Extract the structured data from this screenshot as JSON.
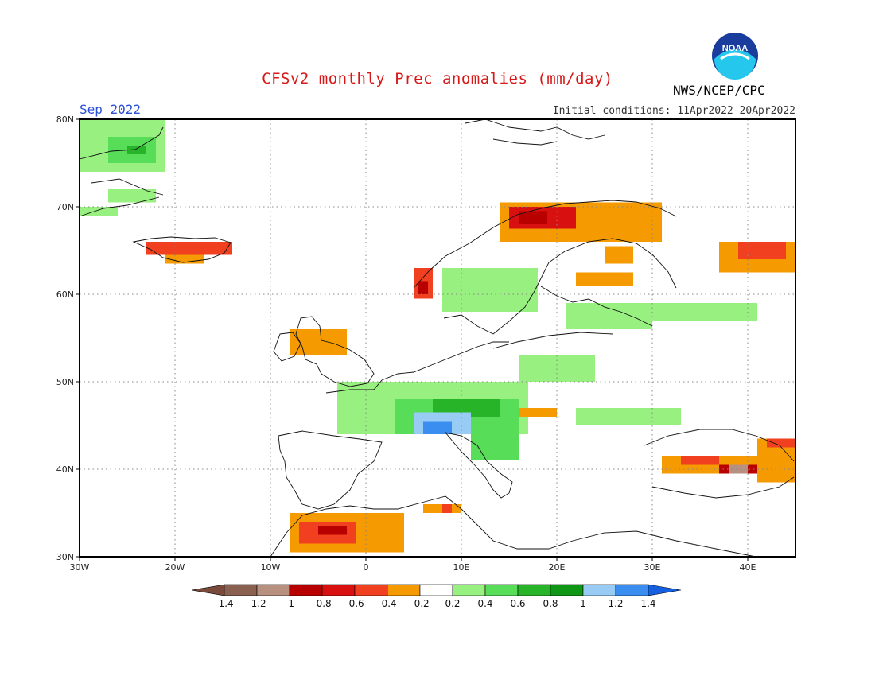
{
  "title": "CFSv2 monthly Prec anomalies (mm/day)",
  "month_label": "Sep 2022",
  "initial_conditions": "Initial conditions: 11Apr2022-20Apr2022",
  "agency": "NWS/NCEP/CPC",
  "logo_text": "NOAA",
  "map": {
    "lon_range": [
      -30,
      45
    ],
    "lat_range": [
      30,
      80
    ],
    "lat_labels": [
      "30N",
      "40N",
      "50N",
      "60N",
      "70N",
      "80N"
    ],
    "lon_labels": [
      "30W",
      "20W",
      "10W",
      "0",
      "10E",
      "20E",
      "30E",
      "40E"
    ]
  },
  "colorbar": {
    "labels": [
      "-1.4",
      "-1.2",
      "-1",
      "-0.8",
      "-0.6",
      "-0.4",
      "-0.2",
      "0.2",
      "0.4",
      "0.6",
      "0.8",
      "1",
      "1.2",
      "1.4"
    ],
    "colors": [
      "#7a4a3a",
      "#8a6050",
      "#b89080",
      "#b80000",
      "#d81010",
      "#f04020",
      "#f59a00",
      "#ffffff",
      "#98f080",
      "#58dd58",
      "#28b428",
      "#0e9614",
      "#98ccf4",
      "#3a8ef0",
      "#1460e0"
    ]
  },
  "anomaly_regions": [
    {
      "name": "greenland-east",
      "color": "#98f080",
      "lon": [
        -30,
        -21
      ],
      "lat": [
        74,
        80
      ]
    },
    {
      "name": "greenland-core",
      "color": "#58dd58",
      "lon": [
        -27,
        -22
      ],
      "lat": [
        75,
        78
      ]
    },
    {
      "name": "greenland-dark",
      "color": "#28b428",
      "lon": [
        -25,
        -23
      ],
      "lat": [
        76,
        77
      ]
    },
    {
      "name": "greenland-south",
      "color": "#98f080",
      "lon": [
        -30,
        -26
      ],
      "lat": [
        69,
        70
      ]
    },
    {
      "name": "greenland-mid",
      "color": "#98f080",
      "lon": [
        -27,
        -22
      ],
      "lat": [
        70.5,
        72
      ]
    },
    {
      "name": "iceland-north",
      "color": "#f04020",
      "lon": [
        -23,
        -14
      ],
      "lat": [
        64.5,
        66
      ]
    },
    {
      "name": "iceland-south",
      "color": "#f59a00",
      "lon": [
        -21,
        -17
      ],
      "lat": [
        63.5,
        64.5
      ]
    },
    {
      "name": "norway-coast-orange",
      "color": "#f59a00",
      "lon": [
        14,
        31
      ],
      "lat": [
        66,
        70.5
      ]
    },
    {
      "name": "norway-coast-red",
      "color": "#d81010",
      "lon": [
        15,
        22
      ],
      "lat": [
        67.5,
        70
      ]
    },
    {
      "name": "norway-coast-dark",
      "color": "#b80000",
      "lon": [
        16,
        19
      ],
      "lat": [
        68,
        69.5
      ]
    },
    {
      "name": "norway-west-red",
      "color": "#f04020",
      "lon": [
        5,
        7
      ],
      "lat": [
        59.5,
        63
      ]
    },
    {
      "name": "norway-west-dark",
      "color": "#b80000",
      "lon": [
        5.5,
        6.5
      ],
      "lat": [
        60,
        61.5
      ]
    },
    {
      "name": "scandinavia-green",
      "color": "#98f080",
      "lon": [
        8,
        18
      ],
      "lat": [
        58,
        63
      ]
    },
    {
      "name": "baltic-green",
      "color": "#98f080",
      "lon": [
        21,
        30
      ],
      "lat": [
        56,
        59
      ]
    },
    {
      "name": "russia-green",
      "color": "#98f080",
      "lon": [
        30,
        41
      ],
      "lat": [
        57,
        59
      ]
    },
    {
      "name": "finland-orange-1",
      "color": "#f59a00",
      "lon": [
        25,
        28
      ],
      "lat": [
        63.5,
        65.5
      ]
    },
    {
      "name": "finland-orange-2",
      "color": "#f59a00",
      "lon": [
        22,
        28
      ],
      "lat": [
        61,
        62.5
      ]
    },
    {
      "name": "urals-orange",
      "color": "#f59a00",
      "lon": [
        37,
        45
      ],
      "lat": [
        62.5,
        66
      ]
    },
    {
      "name": "urals-red",
      "color": "#f04020",
      "lon": [
        39,
        44
      ],
      "lat": [
        64,
        66
      ]
    },
    {
      "name": "poland-green",
      "color": "#98f080",
      "lon": [
        16,
        24
      ],
      "lat": [
        50,
        53
      ]
    },
    {
      "name": "central-eu-green",
      "color": "#98f080",
      "lon": [
        -3,
        17
      ],
      "lat": [
        44,
        50
      ]
    },
    {
      "name": "alps-green",
      "color": "#58dd58",
      "lon": [
        3,
        16
      ],
      "lat": [
        44,
        48
      ]
    },
    {
      "name": "alps-dark",
      "color": "#28b428",
      "lon": [
        7,
        14
      ],
      "lat": [
        46,
        48
      ]
    },
    {
      "name": "alps-blue",
      "color": "#98ccf4",
      "lon": [
        5,
        11
      ],
      "lat": [
        44,
        46.5
      ]
    },
    {
      "name": "alps-deepblue",
      "color": "#3a8ef0",
      "lon": [
        6,
        9
      ],
      "lat": [
        44,
        45.5
      ]
    },
    {
      "name": "italy-green",
      "color": "#58dd58",
      "lon": [
        11,
        16
      ],
      "lat": [
        41,
        44
      ]
    },
    {
      "name": "balkan-green",
      "color": "#98f080",
      "lon": [
        22,
        33
      ],
      "lat": [
        45,
        47
      ]
    },
    {
      "name": "hungary-orange",
      "color": "#f59a00",
      "lon": [
        16,
        20
      ],
      "lat": [
        46,
        47
      ]
    },
    {
      "name": "uk-orange",
      "color": "#f59a00",
      "lon": [
        -8,
        -2
      ],
      "lat": [
        53,
        56
      ]
    },
    {
      "name": "turkey-orange",
      "color": "#f59a00",
      "lon": [
        31,
        45
      ],
      "lat": [
        39.5,
        41.5
      ]
    },
    {
      "name": "turkey-red",
      "color": "#f04020",
      "lon": [
        33,
        37
      ],
      "lat": [
        40.5,
        41.5
      ]
    },
    {
      "name": "turkey-dark",
      "color": "#b80000",
      "lon": [
        37,
        41
      ],
      "lat": [
        39.5,
        40.5
      ]
    },
    {
      "name": "turkey-brown",
      "color": "#b89080",
      "lon": [
        38,
        40
      ],
      "lat": [
        39.5,
        40.5
      ]
    },
    {
      "name": "caucasus-orange",
      "color": "#f59a00",
      "lon": [
        41,
        45
      ],
      "lat": [
        38.5,
        43.5
      ]
    },
    {
      "name": "caucasus-red",
      "color": "#f04020",
      "lon": [
        42,
        45
      ],
      "lat": [
        42.5,
        43.5
      ]
    },
    {
      "name": "morocco-orange",
      "color": "#f59a00",
      "lon": [
        -8,
        4
      ],
      "lat": [
        30.5,
        35
      ]
    },
    {
      "name": "morocco-red",
      "color": "#f04020",
      "lon": [
        -7,
        -1
      ],
      "lat": [
        31.5,
        34
      ]
    },
    {
      "name": "morocco-dark",
      "color": "#b80000",
      "lon": [
        -5,
        -2
      ],
      "lat": [
        32.5,
        33.5
      ]
    },
    {
      "name": "tunisia-orange",
      "color": "#f59a00",
      "lon": [
        6,
        10
      ],
      "lat": [
        35,
        36
      ]
    },
    {
      "name": "tunisia-red",
      "color": "#f04020",
      "lon": [
        8,
        9
      ],
      "lat": [
        35,
        36
      ]
    }
  ]
}
